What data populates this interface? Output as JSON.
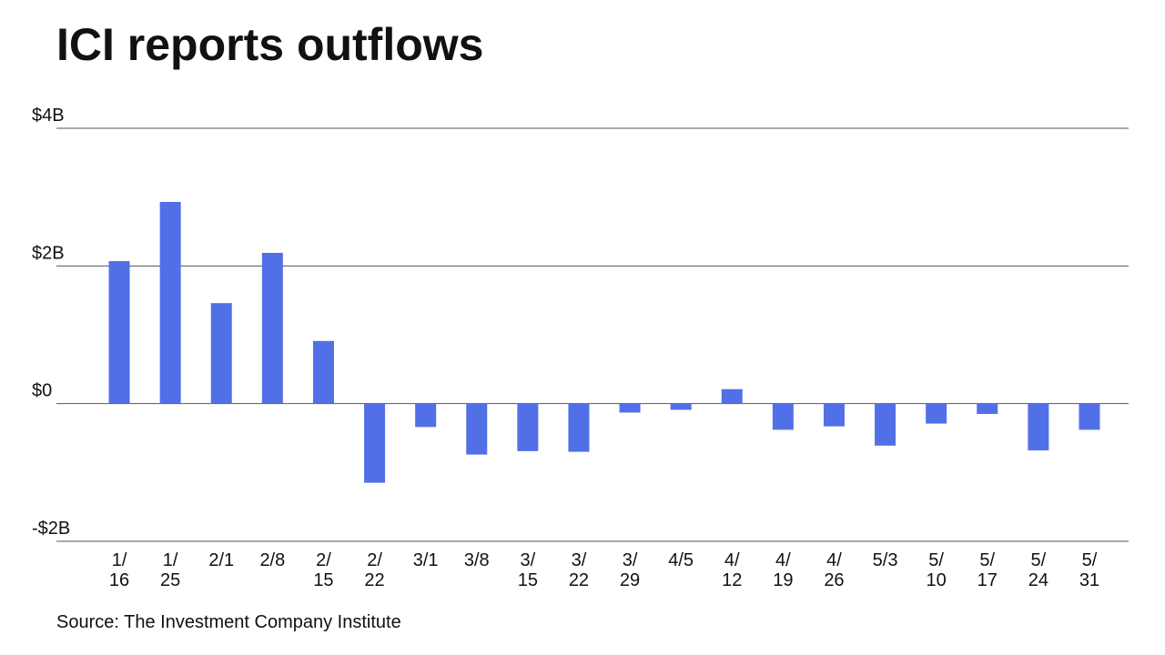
{
  "chart_data": {
    "type": "bar",
    "title": "ICI reports outflows",
    "source": "Source: The Investment Company Institute",
    "categories": [
      "1/16",
      "1/25",
      "2/1",
      "2/8",
      "2/15",
      "2/22",
      "3/1",
      "3/8",
      "3/15",
      "3/22",
      "3/29",
      "4/5",
      "4/12",
      "4/19",
      "4/26",
      "5/3",
      "5/10",
      "5/17",
      "5/24",
      "5/31"
    ],
    "values": [
      2.07,
      2.93,
      1.46,
      2.19,
      0.91,
      -1.15,
      -0.34,
      -0.74,
      -0.69,
      -0.7,
      -0.13,
      -0.09,
      0.21,
      -0.38,
      -0.33,
      -0.61,
      -0.29,
      -0.15,
      -0.68,
      -0.38
    ],
    "color": "#5170e8",
    "ylim": [
      -2,
      4
    ],
    "yticks": [
      {
        "value": -2,
        "label": "-$2B"
      },
      {
        "value": 0,
        "label": "$0"
      },
      {
        "value": 2,
        "label": "$2B"
      },
      {
        "value": 4,
        "label": "$4B"
      }
    ],
    "grid": true
  }
}
